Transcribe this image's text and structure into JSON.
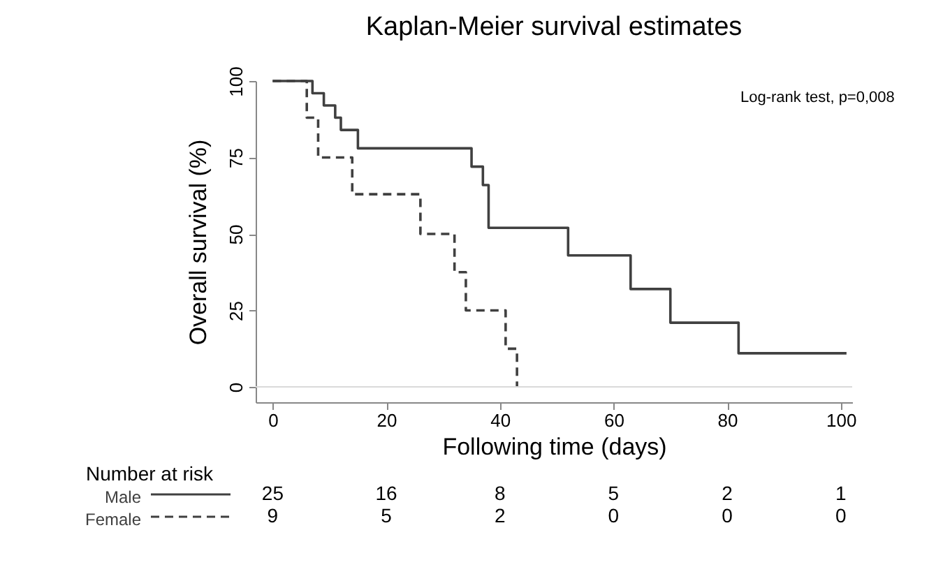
{
  "chart_data": {
    "type": "step",
    "title": "Kaplan-Meier survival estimates",
    "xlabel": "Following time (days)",
    "ylabel": "Overall survival (%)",
    "xlim": [
      -3,
      102
    ],
    "xticks": [
      0,
      20,
      40,
      60,
      80,
      100
    ],
    "ylim": [
      -5,
      100
    ],
    "yticks": [
      0,
      25,
      50,
      75,
      100
    ],
    "grid": false,
    "legend": "bottom",
    "series": [
      {
        "name": "Male",
        "color": "#404040",
        "line_style": "solid",
        "x": [
          0,
          7,
          9,
          11,
          12,
          15,
          35,
          37,
          38,
          52,
          63,
          70,
          82,
          101
        ],
        "values": [
          100,
          96,
          92,
          88,
          84,
          78,
          72,
          66,
          52,
          43,
          32,
          21,
          11,
          11
        ]
      },
      {
        "name": "Female",
        "color": "#404040",
        "line_style": "dashed",
        "x": [
          0,
          6,
          8,
          14,
          26,
          32,
          34,
          41,
          43
        ],
        "values": [
          100,
          88,
          75,
          63,
          50,
          37.5,
          25,
          12.5,
          0
        ]
      }
    ],
    "ref_lines": [
      {
        "axis": "y",
        "value": 0,
        "color": "#d9d9d9"
      }
    ],
    "annotations": [
      "Log-rank test, p=0,008",
      "Number at risk",
      "25",
      "16",
      "8",
      "5",
      "2",
      "1",
      "9",
      "5",
      "2",
      "0",
      "0",
      "0"
    ]
  }
}
